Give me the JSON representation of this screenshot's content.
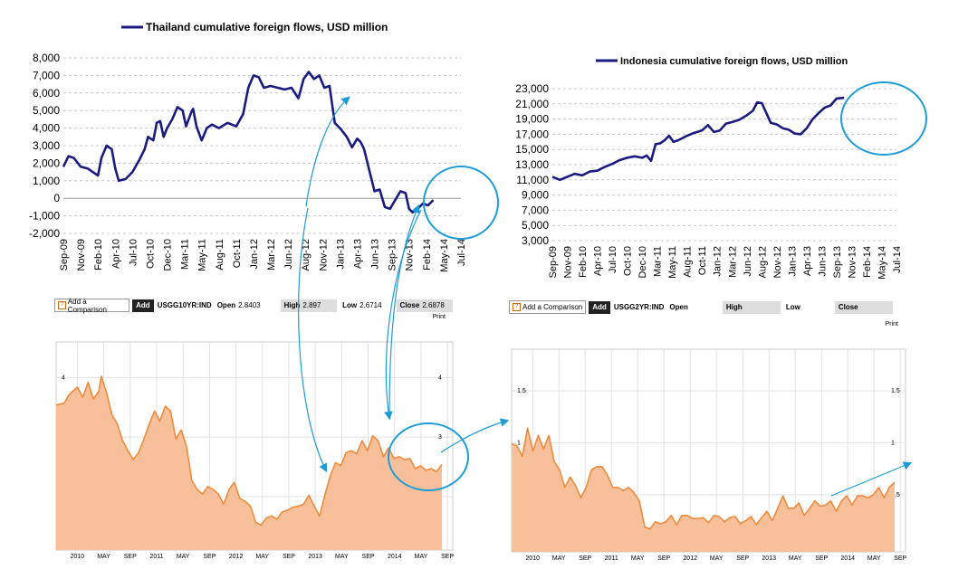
{
  "chart_data": [
    {
      "type": "line",
      "title": "Thailand cumulative foreign flows, USD million",
      "series": [
        {
          "name": "Thailand cumulative foreign flows, USD million",
          "color": "#1a1a80"
        }
      ],
      "x_labels": [
        "Sep-09",
        "Nov-09",
        "Feb-10",
        "Apr-10",
        "Jul-10",
        "Oct-10",
        "Dec-10",
        "Mar-11",
        "May-11",
        "Aug-11",
        "Oct-11",
        "Jan-12",
        "Mar-12",
        "Jun-12",
        "Aug-12",
        "Nov-12",
        "Jan-13",
        "Apr-13",
        "Jun-13",
        "Sep-13",
        "Nov-13",
        "Feb-14",
        "May-14",
        "Jul-14"
      ],
      "y_ticks": [
        "8,000",
        "7,000",
        "6,000",
        "5,000",
        "4,000",
        "3,000",
        "2,000",
        "1,000",
        "0",
        "-1,000",
        "-2,000"
      ],
      "ylim": [
        -2000,
        8000
      ],
      "points": [
        [
          0,
          1800
        ],
        [
          0.3,
          2400
        ],
        [
          0.6,
          2300
        ],
        [
          1,
          1800
        ],
        [
          1.4,
          1700
        ],
        [
          1.7,
          1500
        ],
        [
          2,
          1300
        ],
        [
          2.2,
          2300
        ],
        [
          2.5,
          3000
        ],
        [
          2.8,
          2800
        ],
        [
          3,
          1700
        ],
        [
          3.2,
          1000
        ],
        [
          3.6,
          1100
        ],
        [
          4,
          1500
        ],
        [
          4.4,
          2200
        ],
        [
          4.7,
          2800
        ],
        [
          4.9,
          3500
        ],
        [
          5.2,
          3300
        ],
        [
          5.4,
          4300
        ],
        [
          5.6,
          4400
        ],
        [
          5.8,
          3500
        ],
        [
          6,
          4000
        ],
        [
          6.3,
          4500
        ],
        [
          6.6,
          5200
        ],
        [
          6.9,
          5000
        ],
        [
          7.1,
          4100
        ],
        [
          7.4,
          4900
        ],
        [
          7.5,
          5100
        ],
        [
          7.7,
          4100
        ],
        [
          8,
          3300
        ],
        [
          8.3,
          4000
        ],
        [
          8.6,
          4200
        ],
        [
          9,
          4000
        ],
        [
          9.5,
          4300
        ],
        [
          10,
          4100
        ],
        [
          10.4,
          4800
        ],
        [
          10.7,
          6300
        ],
        [
          11,
          7000
        ],
        [
          11.3,
          6900
        ],
        [
          11.6,
          6300
        ],
        [
          12,
          6400
        ],
        [
          12.4,
          6300
        ],
        [
          12.8,
          6200
        ],
        [
          13.2,
          6300
        ],
        [
          13.6,
          5700
        ],
        [
          13.9,
          6800
        ],
        [
          14.2,
          7200
        ],
        [
          14.5,
          6800
        ],
        [
          14.8,
          7000
        ],
        [
          15.1,
          6300
        ],
        [
          15.4,
          6400
        ],
        [
          15.7,
          4300
        ],
        [
          16,
          4000
        ],
        [
          16.4,
          3500
        ],
        [
          16.7,
          2900
        ],
        [
          17,
          3400
        ],
        [
          17.2,
          3200
        ],
        [
          17.4,
          2800
        ],
        [
          17.7,
          1600
        ],
        [
          18,
          400
        ],
        [
          18.3,
          500
        ],
        [
          18.6,
          -500
        ],
        [
          18.9,
          -600
        ],
        [
          19.2,
          -100
        ],
        [
          19.5,
          400
        ],
        [
          19.8,
          300
        ],
        [
          20,
          -600
        ],
        [
          20.2,
          -800
        ],
        [
          20.5,
          -600
        ],
        [
          20.8,
          -300
        ],
        [
          21.1,
          -400
        ],
        [
          21.4,
          -100
        ]
      ]
    },
    {
      "type": "line",
      "title": "Indonesia cumulative foreign flows, USD million",
      "series": [
        {
          "name": "Indonesia cumulative foreign flows, USD million",
          "color": "#1a1a80"
        }
      ],
      "x_labels": [
        "Sep-09",
        "Nov-09",
        "Feb-10",
        "Apr-10",
        "Jul-10",
        "Oct-10",
        "Dec-10",
        "Mar-11",
        "May-11",
        "Aug-11",
        "Oct-11",
        "Jan-12",
        "Mar-12",
        "Jun-12",
        "Aug-12",
        "Nov-12",
        "Jan-13",
        "Apr-13",
        "Jun-13",
        "Sep-13",
        "Nov-13",
        "Feb-14",
        "May-14",
        "Jul-14"
      ],
      "y_ticks": [
        "23,000",
        "21,000",
        "19,000",
        "17,000",
        "15,000",
        "13,000",
        "11,000",
        "9,000",
        "7,000",
        "5,000",
        "3,000"
      ],
      "ylim": [
        3000,
        23000
      ],
      "points": [
        [
          0,
          11400
        ],
        [
          0.5,
          11000
        ],
        [
          1,
          11400
        ],
        [
          1.5,
          11800
        ],
        [
          2,
          11600
        ],
        [
          2.5,
          12100
        ],
        [
          3,
          12200
        ],
        [
          3.5,
          12700
        ],
        [
          4,
          13100
        ],
        [
          4.5,
          13600
        ],
        [
          5,
          13900
        ],
        [
          5.5,
          14100
        ],
        [
          6,
          13900
        ],
        [
          6.3,
          14200
        ],
        [
          6.6,
          13500
        ],
        [
          6.9,
          15700
        ],
        [
          7.2,
          15800
        ],
        [
          7.5,
          16200
        ],
        [
          7.8,
          16800
        ],
        [
          8.1,
          16000
        ],
        [
          8.4,
          16200
        ],
        [
          8.7,
          16500
        ],
        [
          9,
          16800
        ],
        [
          9.5,
          17200
        ],
        [
          10,
          17500
        ],
        [
          10.4,
          18200
        ],
        [
          10.8,
          17300
        ],
        [
          11.2,
          17500
        ],
        [
          11.6,
          18400
        ],
        [
          12,
          18600
        ],
        [
          12.5,
          18900
        ],
        [
          13,
          19500
        ],
        [
          13.4,
          20100
        ],
        [
          13.7,
          21200
        ],
        [
          14,
          21100
        ],
        [
          14.3,
          19800
        ],
        [
          14.6,
          18500
        ],
        [
          15,
          18300
        ],
        [
          15.4,
          17800
        ],
        [
          15.8,
          17600
        ],
        [
          16.2,
          17100
        ],
        [
          16.6,
          17000
        ],
        [
          17,
          17800
        ],
        [
          17.4,
          19000
        ],
        [
          17.8,
          19800
        ],
        [
          18.2,
          20500
        ],
        [
          18.6,
          20800
        ],
        [
          19,
          21700
        ],
        [
          19.5,
          21800
        ]
      ]
    },
    {
      "type": "area",
      "ticker": "USGG10YR:IND",
      "toolbar": {
        "add_comparison": "Add a Comparison",
        "add": "Add",
        "open_label": "Open",
        "open_value": "2.8403",
        "high_label": "High",
        "high_value": "2.897",
        "low_label": "Low",
        "low_value": "2.6714",
        "close_label": "Close",
        "close_value": "2.6878",
        "print": "Print"
      },
      "x_labels": [
        "2010",
        "MAY",
        "SEP",
        "2011",
        "MAY",
        "SEP",
        "2012",
        "MAY",
        "SEP",
        "2013",
        "MAY",
        "SEP",
        "2014",
        "MAY",
        "SEP"
      ],
      "y_ticks": [
        "4",
        "3",
        "2"
      ],
      "ylim": [
        1.1,
        4.6
      ],
      "color": "#f08a3c",
      "fill": "#f8c09a",
      "points": [
        [
          0,
          3.5
        ],
        [
          0.3,
          3.6
        ],
        [
          0.5,
          3.7
        ],
        [
          0.8,
          3.8
        ],
        [
          1,
          3.7
        ],
        [
          1.2,
          3.9
        ],
        [
          1.4,
          3.6
        ],
        [
          1.6,
          3.8
        ],
        [
          1.7,
          4.0
        ],
        [
          1.9,
          3.7
        ],
        [
          2.1,
          3.4
        ],
        [
          2.3,
          3.2
        ],
        [
          2.5,
          2.9
        ],
        [
          2.7,
          2.8
        ],
        [
          2.9,
          2.6
        ],
        [
          3.1,
          2.7
        ],
        [
          3.3,
          3.0
        ],
        [
          3.5,
          3.2
        ],
        [
          3.7,
          3.4
        ],
        [
          3.9,
          3.3
        ],
        [
          4.1,
          3.5
        ],
        [
          4.3,
          3.4
        ],
        [
          4.5,
          3.0
        ],
        [
          4.7,
          3.1
        ],
        [
          4.9,
          2.8
        ],
        [
          5.1,
          2.3
        ],
        [
          5.3,
          2.1
        ],
        [
          5.5,
          2.0
        ],
        [
          5.7,
          2.2
        ],
        [
          5.9,
          2.1
        ],
        [
          6.1,
          2.0
        ],
        [
          6.3,
          1.9
        ],
        [
          6.5,
          2.1
        ],
        [
          6.7,
          2.2
        ],
        [
          6.9,
          2.0
        ],
        [
          7.1,
          1.9
        ],
        [
          7.3,
          1.8
        ],
        [
          7.5,
          1.6
        ],
        [
          7.7,
          1.5
        ],
        [
          7.9,
          1.6
        ],
        [
          8.1,
          1.7
        ],
        [
          8.3,
          1.6
        ],
        [
          8.5,
          1.7
        ],
        [
          8.7,
          1.8
        ],
        [
          8.9,
          1.8
        ],
        [
          9.1,
          1.8
        ],
        [
          9.3,
          1.9
        ],
        [
          9.5,
          2.0
        ],
        [
          9.7,
          1.8
        ],
        [
          9.9,
          1.7
        ],
        [
          10.1,
          2.0
        ],
        [
          10.3,
          2.3
        ],
        [
          10.5,
          2.6
        ],
        [
          10.7,
          2.5
        ],
        [
          10.9,
          2.7
        ],
        [
          11.1,
          2.8
        ],
        [
          11.3,
          2.7
        ],
        [
          11.5,
          2.9
        ],
        [
          11.7,
          2.8
        ],
        [
          11.9,
          3.0
        ],
        [
          12.1,
          2.9
        ],
        [
          12.3,
          2.7
        ],
        [
          12.5,
          2.8
        ],
        [
          12.7,
          2.6
        ],
        [
          12.9,
          2.7
        ],
        [
          13.1,
          2.6
        ],
        [
          13.3,
          2.6
        ],
        [
          13.5,
          2.5
        ],
        [
          13.7,
          2.5
        ],
        [
          13.9,
          2.4
        ],
        [
          14.1,
          2.5
        ],
        [
          14.3,
          2.4
        ],
        [
          14.5,
          2.5
        ]
      ]
    },
    {
      "type": "area",
      "ticker": "USGG2YR:IND",
      "toolbar": {
        "add_comparison": "Add a Comparison",
        "add": "Add",
        "open_label": "Open",
        "open_value": "",
        "high_label": "High",
        "high_value": "",
        "low_label": "Low",
        "low_value": "",
        "close_label": "Close",
        "close_value": "",
        "print": "Print"
      },
      "x_labels": [
        "2010",
        "MAY",
        "SEP",
        "2011",
        "MAY",
        "SEP",
        "2012",
        "MAY",
        "SEP",
        "2013",
        "MAY",
        "SEP",
        "2014",
        "MAY",
        "SEP"
      ],
      "y_ticks": [
        "1.5",
        "1",
        "0.5"
      ],
      "ylim": [
        -0.05,
        1.9
      ],
      "color": "#f08a3c",
      "fill": "#f8c09a",
      "points": [
        [
          0,
          0.95
        ],
        [
          0.2,
          1.0
        ],
        [
          0.4,
          0.85
        ],
        [
          0.6,
          1.1
        ],
        [
          0.8,
          0.95
        ],
        [
          1,
          1.05
        ],
        [
          1.2,
          0.9
        ],
        [
          1.4,
          1.1
        ],
        [
          1.6,
          0.8
        ],
        [
          1.8,
          0.7
        ],
        [
          2,
          0.6
        ],
        [
          2.2,
          0.65
        ],
        [
          2.4,
          0.55
        ],
        [
          2.6,
          0.5
        ],
        [
          2.8,
          0.55
        ],
        [
          3,
          0.7
        ],
        [
          3.2,
          0.8
        ],
        [
          3.4,
          0.75
        ],
        [
          3.6,
          0.65
        ],
        [
          3.8,
          0.6
        ],
        [
          4,
          0.55
        ],
        [
          4.2,
          0.5
        ],
        [
          4.4,
          0.6
        ],
        [
          4.6,
          0.5
        ],
        [
          4.8,
          0.4
        ],
        [
          5,
          0.22
        ],
        [
          5.2,
          0.15
        ],
        [
          5.4,
          0.2
        ],
        [
          5.6,
          0.25
        ],
        [
          5.8,
          0.22
        ],
        [
          6,
          0.26
        ],
        [
          6.2,
          0.24
        ],
        [
          6.4,
          0.28
        ],
        [
          6.6,
          0.26
        ],
        [
          6.8,
          0.3
        ],
        [
          7,
          0.25
        ],
        [
          7.2,
          0.24
        ],
        [
          7.4,
          0.26
        ],
        [
          7.6,
          0.28
        ],
        [
          7.8,
          0.25
        ],
        [
          8,
          0.27
        ],
        [
          8.2,
          0.26
        ],
        [
          8.4,
          0.25
        ],
        [
          8.6,
          0.25
        ],
        [
          8.8,
          0.23
        ],
        [
          9,
          0.25
        ],
        [
          9.2,
          0.24
        ],
        [
          9.4,
          0.26
        ],
        [
          9.6,
          0.3
        ],
        [
          9.8,
          0.28
        ],
        [
          10,
          0.35
        ],
        [
          10.2,
          0.45
        ],
        [
          10.4,
          0.4
        ],
        [
          10.6,
          0.35
        ],
        [
          10.8,
          0.38
        ],
        [
          11,
          0.33
        ],
        [
          11.2,
          0.35
        ],
        [
          11.4,
          0.4
        ],
        [
          11.6,
          0.42
        ],
        [
          11.8,
          0.38
        ],
        [
          12,
          0.4
        ],
        [
          12.2,
          0.37
        ],
        [
          12.4,
          0.42
        ],
        [
          12.6,
          0.45
        ],
        [
          12.8,
          0.43
        ],
        [
          13,
          0.47
        ],
        [
          13.2,
          0.45
        ],
        [
          13.4,
          0.5
        ],
        [
          13.6,
          0.48
        ],
        [
          13.8,
          0.53
        ],
        [
          14,
          0.5
        ],
        [
          14.2,
          0.55
        ],
        [
          14.4,
          0.58
        ]
      ]
    }
  ],
  "annotations": {
    "color": "#1e9cd7"
  }
}
